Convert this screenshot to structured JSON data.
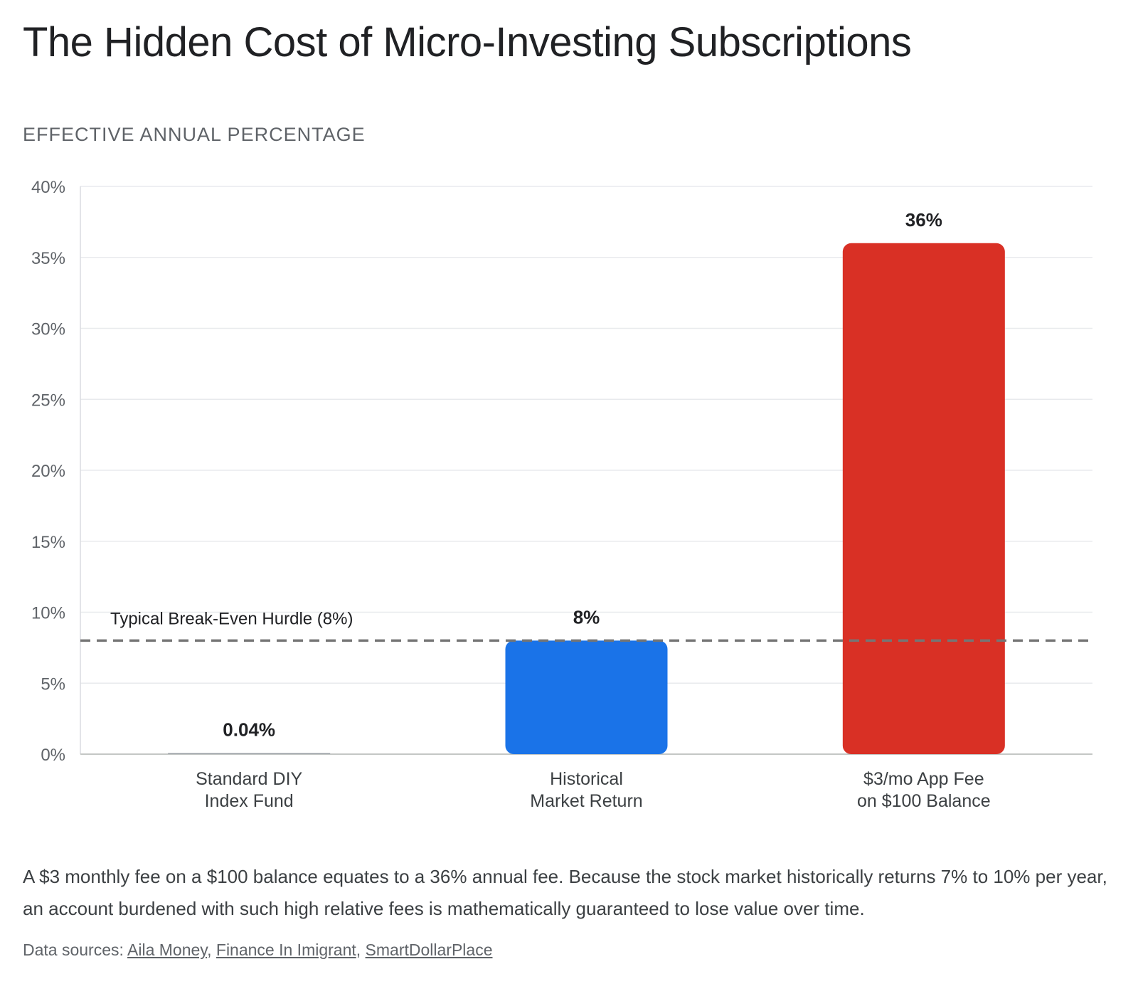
{
  "title": "The Hidden Cost of Micro-Investing Subscriptions",
  "subtitle": "EFFECTIVE ANNUAL PERCENTAGE",
  "description": "A $3 monthly fee on a $100 balance equates to a 36% annual fee. Because the stock market historically returns 7% to 10% per year, an account burdened with such high relative fees is mathematically guaranteed to lose value over time.",
  "sources": {
    "prefix": "Data sources: ",
    "links": [
      "Aila Money",
      "Finance In Imigrant",
      "SmartDollarPlace"
    ],
    "separator": ", "
  },
  "chart_data": {
    "type": "bar",
    "categories": [
      [
        "Standard DIY",
        "Index Fund"
      ],
      [
        "Historical",
        "Market Return"
      ],
      [
        "$3/mo App Fee",
        "on $100 Balance"
      ]
    ],
    "values": [
      0.04,
      8,
      36
    ],
    "data_labels": [
      "0.04%",
      "8%",
      "36%"
    ],
    "bar_colors": [
      "#9aa0a6",
      "#1a73e8",
      "#d93025"
    ],
    "ylim": [
      0,
      40
    ],
    "yticks": [
      0,
      5,
      10,
      15,
      20,
      25,
      30,
      35,
      40
    ],
    "ytick_labels": [
      "0%",
      "5%",
      "10%",
      "15%",
      "20%",
      "25%",
      "30%",
      "35%",
      "40%"
    ],
    "grid": true,
    "reference_line": {
      "value": 8,
      "label": "Typical Break-Even Hurdle (8%)",
      "style": "dashed",
      "color": "#757575"
    }
  }
}
